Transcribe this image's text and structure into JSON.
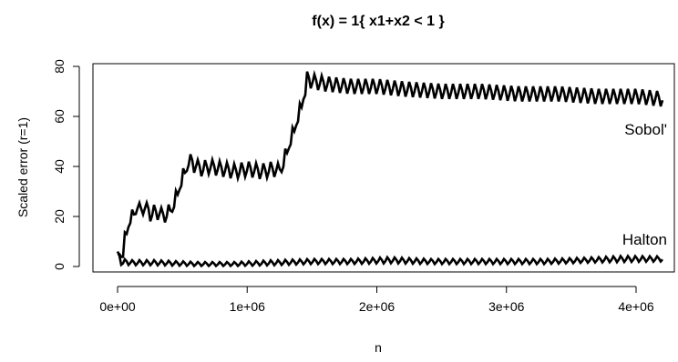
{
  "chart_data": {
    "type": "line",
    "title": "f(x) = 1{ x1+x2 < 1 }",
    "xlabel": "n",
    "ylabel": "Scaled error (r=1)",
    "xlim": [
      0,
      4200000
    ],
    "ylim": [
      0,
      80
    ],
    "x_ticks": [
      0,
      1000000,
      2000000,
      3000000,
      4000000
    ],
    "x_tick_labels": [
      "0e+00",
      "1e+06",
      "2e+06",
      "3e+06",
      "4e+06"
    ],
    "y_ticks": [
      0,
      20,
      40,
      60,
      80
    ],
    "y_tick_labels": [
      "0",
      "20",
      "40",
      "60",
      "80"
    ],
    "grid": false,
    "legend": "none",
    "series": [
      {
        "name": "Sobol'",
        "color": "#000000",
        "x": [
          0,
          20000,
          40000,
          60000,
          80000,
          100000,
          130000,
          160000,
          200000,
          250000,
          300000,
          350000,
          400000,
          430000,
          460000,
          500000,
          530000,
          560000,
          600000,
          650000,
          700000,
          800000,
          900000,
          1000000,
          1100000,
          1200000,
          1250000,
          1300000,
          1340000,
          1370000,
          1400000,
          1430000,
          1460000,
          1500000,
          1600000,
          1800000,
          2000000,
          2200000,
          2500000,
          2800000,
          3100000,
          3400000,
          3700000,
          4000000,
          4200000
        ],
        "values": [
          5,
          1,
          8,
          14,
          18,
          17,
          25,
          22,
          24,
          21,
          22,
          20,
          22,
          25,
          30,
          36,
          41,
          42,
          40,
          39,
          40,
          39,
          38,
          39,
          38,
          39,
          38,
          46,
          52,
          57,
          62,
          68,
          75,
          74,
          73,
          72,
          72,
          71,
          70,
          70,
          69,
          69,
          68,
          68,
          67
        ],
        "band": [
          0,
          0,
          0,
          1,
          2,
          2,
          3,
          3,
          3,
          3,
          3,
          3,
          3,
          2,
          2,
          2,
          3,
          3,
          3,
          3,
          3,
          3,
          3,
          3,
          3,
          3,
          3,
          2,
          2,
          2,
          2,
          2,
          3,
          3,
          3,
          3,
          3,
          3,
          3,
          3,
          3,
          3,
          3,
          3,
          3
        ]
      },
      {
        "name": "Halton",
        "color": "#000000",
        "x": [
          0,
          20000,
          40000,
          100000,
          300000,
          600000,
          900000,
          1200000,
          1500000,
          1800000,
          2100000,
          2400000,
          2700000,
          3000000,
          3300000,
          3600000,
          3900000,
          4200000
        ],
        "values": [
          4,
          1,
          2,
          1.5,
          1.5,
          1,
          1,
          1.5,
          2,
          2,
          2.5,
          2,
          2,
          2,
          2,
          2.5,
          3,
          3
        ],
        "band": [
          2,
          0.5,
          1,
          1,
          1,
          0.8,
          0.8,
          1,
          1,
          1,
          1.2,
          1,
          1,
          1,
          1,
          1,
          1.2,
          1
        ]
      }
    ],
    "annotations": [
      {
        "text": "Sobol'",
        "x": 4200000,
        "y": 55
      },
      {
        "text": "Halton",
        "x": 4200000,
        "y": 11
      }
    ]
  }
}
